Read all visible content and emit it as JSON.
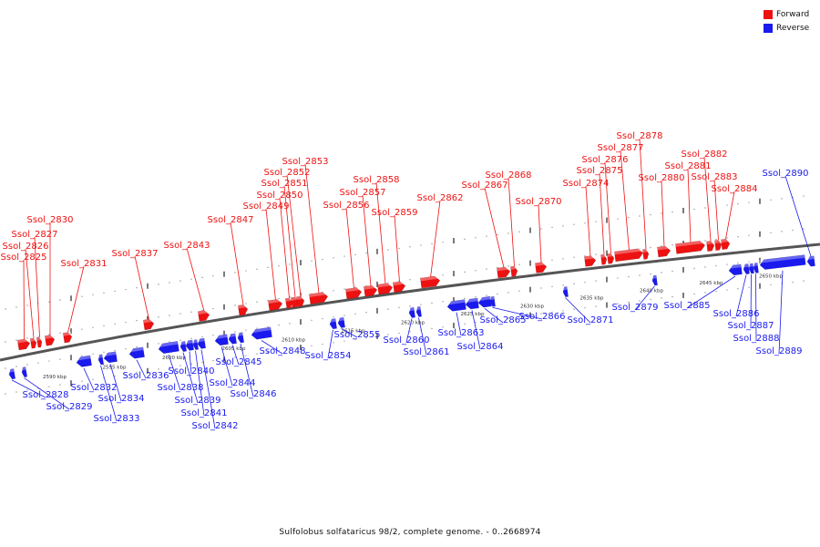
{
  "colors": {
    "forward": "#ee1111",
    "reverse": "#1a1aee"
  },
  "legend": {
    "forward_label": "Forward",
    "reverse_label": "Reverse"
  },
  "caption": "Sulfolobus solfataricus 98/2, complete genome. - 0..2668974",
  "kbp_labels": [
    "2590 kbp",
    "2595 kbp",
    "2600 kbp",
    "2605 kbp",
    "2610 kbp",
    "2615 kbp",
    "2620 kbp",
    "2625 kbp",
    "2630 kbp",
    "2635 kbp",
    "2640 kbp",
    "2645 kbp",
    "2650 kbp"
  ],
  "forward_genes": [
    "Ssol_2825",
    "Ssol_2826",
    "Ssol_2827",
    "Ssol_2830",
    "Ssol_2831",
    "Ssol_2837",
    "Ssol_2843",
    "Ssol_2847",
    "Ssol_2849",
    "Ssol_2850",
    "Ssol_2851",
    "Ssol_2852",
    "Ssol_2853",
    "Ssol_2856",
    "Ssol_2857",
    "Ssol_2858",
    "Ssol_2859",
    "Ssol_2862",
    "Ssol_2867",
    "Ssol_2868",
    "Ssol_2870",
    "Ssol_2874",
    "Ssol_2875",
    "Ssol_2876",
    "Ssol_2877",
    "Ssol_2878",
    "Ssol_2880",
    "Ssol_2881",
    "Ssol_2882",
    "Ssol_2883",
    "Ssol_2884"
  ],
  "reverse_genes": [
    "Ssol_2828",
    "Ssol_2829",
    "Ssol_2832",
    "Ssol_2833",
    "Ssol_2834",
    "Ssol_2836",
    "Ssol_2838",
    "Ssol_2839",
    "Ssol_2840",
    "Ssol_2841",
    "Ssol_2842",
    "Ssol_2844",
    "Ssol_2845",
    "Ssol_2846",
    "Ssol_2848",
    "Ssol_2854",
    "Ssol_2855",
    "Ssol_2860",
    "Ssol_2861",
    "Ssol_2863",
    "Ssol_2864",
    "Ssol_2865",
    "Ssol_2866",
    "Ssol_2871",
    "Ssol_2879",
    "Ssol_2885",
    "Ssol_2886",
    "Ssol_2887",
    "Ssol_2888",
    "Ssol_2889",
    "Ssol_2890"
  ]
}
